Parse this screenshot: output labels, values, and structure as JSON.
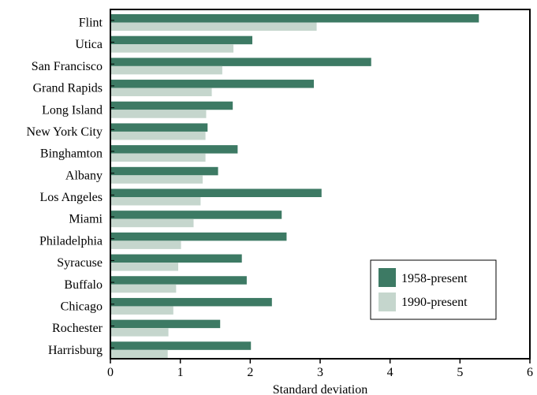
{
  "chart_data": {
    "type": "bar",
    "orientation": "horizontal",
    "categories": [
      "Flint",
      "Utica",
      "San Francisco",
      "Grand Rapids",
      "Long Island",
      "New York City",
      "Binghamton",
      "Albany",
      "Los Angeles",
      "Miami",
      "Philadelphia",
      "Syracuse",
      "Buffalo",
      "Chicago",
      "Rochester",
      "Harrisburg"
    ],
    "series": [
      {
        "name": "1958-present",
        "color": "#3d7a64",
        "values": [
          5.27,
          2.03,
          3.73,
          2.91,
          1.75,
          1.39,
          1.82,
          1.54,
          3.02,
          2.45,
          2.52,
          1.88,
          1.95,
          2.31,
          1.57,
          2.01
        ]
      },
      {
        "name": "1990-present",
        "color": "#c5d6cd",
        "values": [
          2.95,
          1.76,
          1.6,
          1.45,
          1.37,
          1.36,
          1.36,
          1.32,
          1.29,
          1.19,
          1.01,
          0.97,
          0.94,
          0.9,
          0.83,
          0.82
        ]
      }
    ],
    "title": "",
    "xlabel": "Standard deviation",
    "ylabel": "",
    "xlim": [
      0,
      6
    ],
    "xticks": [
      "0",
      "1",
      "2",
      "3",
      "4",
      "5",
      "6"
    ],
    "grid": false,
    "legend_position": "bottom-right"
  }
}
